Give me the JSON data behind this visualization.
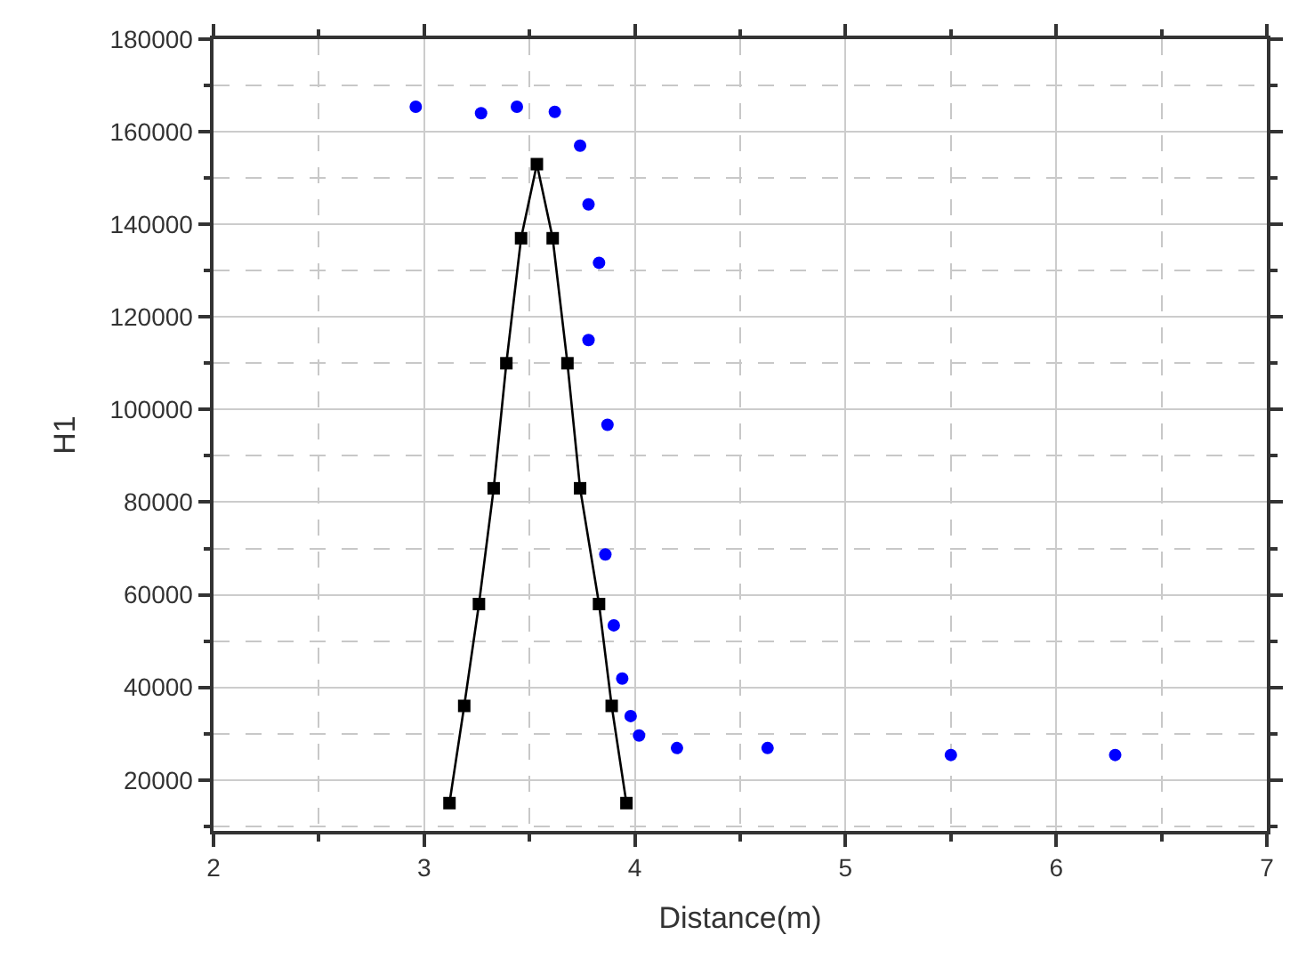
{
  "chart_data": {
    "type": "scatter",
    "xlabel": "Distance(m)",
    "ylabel": "H1",
    "xlim": [
      2,
      7
    ],
    "ylim": [
      9000,
      180000
    ],
    "xticks": [
      2,
      {
        "value": 2.5,
        "label": null
      },
      3,
      {
        "value": 3.5,
        "label": null
      },
      4,
      {
        "value": 4.5,
        "label": null
      },
      5,
      {
        "value": 5.5,
        "label": null
      },
      6,
      {
        "value": 6.5,
        "label": null
      },
      7
    ],
    "yticks": [
      {
        "value": 10000,
        "label": null
      },
      20000,
      {
        "value": 30000,
        "label": null
      },
      40000,
      {
        "value": 50000,
        "label": null
      },
      60000,
      {
        "value": 70000,
        "label": null
      },
      80000,
      {
        "value": 90000,
        "label": null
      },
      100000,
      {
        "value": 110000,
        "label": null
      },
      120000,
      {
        "value": 130000,
        "label": null
      },
      140000,
      {
        "value": 150000,
        "label": null
      },
      160000,
      {
        "value": 170000,
        "label": null
      },
      180000
    ],
    "grid": true,
    "series": [
      {
        "type": "line",
        "color": "#000000",
        "marker": "square",
        "line_style": "solid",
        "x": [
          3.12,
          3.19,
          3.26,
          3.33,
          3.39,
          3.46,
          3.535,
          3.61,
          3.68,
          3.74,
          3.83,
          3.89,
          3.96
        ],
        "values": [
          15000,
          36000,
          58000,
          83000,
          110000,
          137000,
          153000,
          137000,
          110000,
          83000,
          58000,
          36000,
          15000
        ]
      },
      {
        "color": "#0000ff",
        "marker": "circle",
        "x": [
          2.96,
          3.27,
          3.44,
          3.62,
          3.74,
          3.78,
          3.83,
          3.78,
          3.87,
          3.86,
          3.9,
          3.94,
          3.98,
          4.02,
          4.2,
          4.63,
          5.5,
          6.28
        ],
        "values": [
          165400,
          164000,
          165400,
          164300,
          157000,
          144300,
          131700,
          115000,
          96700,
          68700,
          53400,
          41900,
          33800,
          29600,
          26900,
          26900,
          25400,
          25400
        ]
      }
    ]
  }
}
